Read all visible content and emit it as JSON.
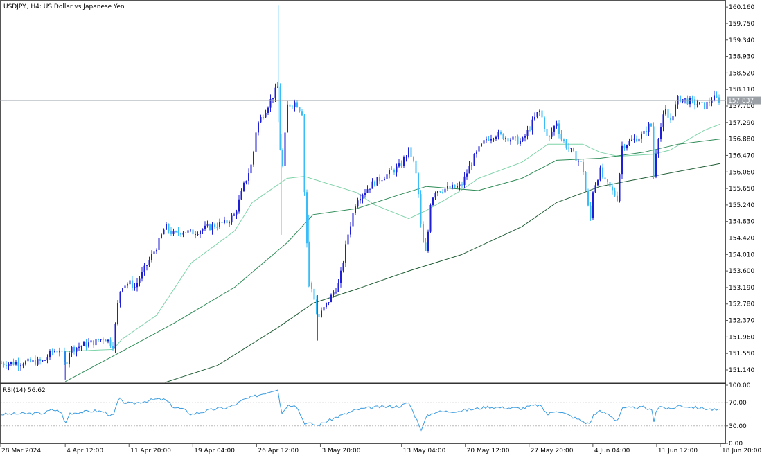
{
  "chart_data": {
    "type": "candlestick",
    "symbol_caption": "USDJPY., H4:  US Dollar vs Japanese Yen",
    "price_axis": {
      "ylim": [
        150.83,
        160.3
      ],
      "ticks": [
        "160.160",
        "159.750",
        "159.340",
        "158.930",
        "158.520",
        "158.110",
        "157.700",
        "157.290",
        "156.880",
        "156.470",
        "156.060",
        "155.650",
        "155.240",
        "154.830",
        "154.420",
        "154.010",
        "153.600",
        "153.190",
        "152.780",
        "152.370",
        "151.960",
        "151.550",
        "151.140"
      ]
    },
    "current_price": {
      "value": 157.837,
      "label": "157.837"
    },
    "time_labels": [
      "28 Mar 2024",
      "4 Apr 12:00",
      "11 Apr 20:00",
      "19 Apr 04:00",
      "26 Apr 12:00",
      "3 May 20:00",
      "13 May 04:00",
      "20 May 12:00",
      "27 May 20:00",
      "4 Jun 04:00",
      "11 Jun 12:00",
      "18 Jun 20:00"
    ],
    "price_path": [
      [
        "28 Mar 2024",
        151.3
      ],
      [
        "2 Apr",
        151.35
      ],
      [
        "3 Apr",
        151.6
      ],
      [
        "4 Apr",
        151.65
      ],
      [
        "4 Apr 12:00",
        151.2
      ],
      [
        "5 Apr",
        151.65
      ],
      [
        "8 Apr",
        151.85
      ],
      [
        "9 Apr",
        151.95
      ],
      [
        "10 Apr",
        151.75
      ],
      [
        "10 Apr 16:00",
        153.0
      ],
      [
        "11 Apr",
        153.25
      ],
      [
        "12 Apr",
        153.3
      ],
      [
        "12 Apr 12:00",
        153.2
      ],
      [
        "15 Apr",
        154.2
      ],
      [
        "16 Apr",
        154.7
      ],
      [
        "17 Apr",
        154.5
      ],
      [
        "18 Apr",
        154.6
      ],
      [
        "19 Apr",
        154.55
      ],
      [
        "22 Apr",
        154.75
      ],
      [
        "23 Apr",
        154.8
      ],
      [
        "24 Apr",
        155.0
      ],
      [
        "25 Apr",
        155.7
      ],
      [
        "26 Apr",
        156.3
      ],
      [
        "26 Apr 12:00",
        157.2
      ],
      [
        "29 Apr",
        158.2
      ],
      [
        "29 Apr 08:00",
        155.8
      ],
      [
        "29 Apr 16:00",
        156.6
      ],
      [
        "30 Apr",
        157.7
      ],
      [
        "1 May",
        157.8
      ],
      [
        "1 May 20:00",
        157.5
      ],
      [
        "2 May",
        155.6
      ],
      [
        "2 May 12:00",
        153.3
      ],
      [
        "3 May",
        153.1
      ],
      [
        "3 May 12:00",
        152.4
      ],
      [
        "6 May",
        153.3
      ],
      [
        "7 May",
        154.5
      ],
      [
        "8 May",
        155.4
      ],
      [
        "9 May",
        155.6
      ],
      [
        "10 May",
        155.8
      ],
      [
        "13 May",
        156.2
      ],
      [
        "14 May",
        156.6
      ],
      [
        "14 May 12:00",
        156.35
      ],
      [
        "15 May",
        155.8
      ],
      [
        "15 May 12:00",
        154.4
      ],
      [
        "16 May",
        154.0
      ],
      [
        "16 May 12:00",
        155.3
      ],
      [
        "17 May",
        155.6
      ],
      [
        "20 May",
        155.7
      ],
      [
        "21 May",
        156.2
      ],
      [
        "22 May",
        156.6
      ],
      [
        "23 May",
        156.9
      ],
      [
        "24 May",
        157.0
      ],
      [
        "27 May",
        156.8
      ],
      [
        "28 May",
        157.2
      ],
      [
        "29 May",
        157.6
      ],
      [
        "29 May 12:00",
        157.3
      ],
      [
        "30 May",
        156.8
      ],
      [
        "30 May 12:00",
        157.1
      ],
      [
        "31 May",
        157.3
      ],
      [
        "31 May 12:00",
        156.9
      ],
      [
        "3 Jun",
        156.2
      ],
      [
        "3 Jun 12:00",
        155.3
      ],
      [
        "4 Jun",
        154.8
      ],
      [
        "4 Jun 04:00",
        155.6
      ],
      [
        "5 Jun",
        156.1
      ],
      [
        "5 Jun 12:00",
        155.8
      ],
      [
        "6 Jun",
        155.7
      ],
      [
        "7 Jun",
        155.4
      ],
      [
        "7 Jun 12:00",
        156.7
      ],
      [
        "10 Jun",
        157.0
      ],
      [
        "10 Jun 12:00",
        157.2
      ],
      [
        "11 Jun",
        157.2
      ],
      [
        "11 Jun 04:00",
        155.8
      ],
      [
        "11 Jun 12:00",
        156.8
      ],
      [
        "12 Jun",
        157.2
      ],
      [
        "12 Jun 12:00",
        157.6
      ],
      [
        "13 Jun",
        157.3
      ],
      [
        "14 Jun",
        157.9
      ],
      [
        "17 Jun",
        157.7
      ],
      [
        "18 Jun",
        157.9
      ],
      [
        "18 Jun 20:00",
        157.84
      ]
    ],
    "moving_averages": [
      {
        "color": "#7dd3a8",
        "points": [
          [
            "4 Apr 12:00",
            151.6
          ],
          [
            "10 Apr",
            151.65
          ],
          [
            "11 Apr",
            151.9
          ],
          [
            "15 Apr",
            152.5
          ],
          [
            "19 Apr",
            153.8
          ],
          [
            "24 Apr",
            154.6
          ],
          [
            "26 Apr",
            155.3
          ],
          [
            "30 Apr",
            155.9
          ],
          [
            "2 May",
            155.95
          ],
          [
            "8 May",
            155.55
          ],
          [
            "10 May",
            155.25
          ],
          [
            "14 May",
            154.9
          ],
          [
            "16 May",
            155.1
          ],
          [
            "20 May",
            155.6
          ],
          [
            "22 May",
            155.9
          ],
          [
            "27 May",
            156.3
          ],
          [
            "30 May",
            156.75
          ],
          [
            "3 Jun",
            156.75
          ],
          [
            "5 Jun",
            156.55
          ],
          [
            "7 Jun",
            156.45
          ],
          [
            "11 Jun",
            156.5
          ],
          [
            "13 Jun",
            156.6
          ],
          [
            "17 Jun",
            157.1
          ],
          [
            "18 Jun 20:00",
            157.25
          ]
        ]
      },
      {
        "color": "#2e8b57",
        "points": [
          [
            "4 Apr 12:00",
            150.85
          ],
          [
            "11 Apr",
            151.6
          ],
          [
            "17 Apr",
            152.3
          ],
          [
            "24 Apr",
            153.2
          ],
          [
            "30 Apr",
            154.3
          ],
          [
            "3 May",
            155.0
          ],
          [
            "8 May",
            155.15
          ],
          [
            "13 May",
            155.5
          ],
          [
            "16 May",
            155.7
          ],
          [
            "22 May",
            155.6
          ],
          [
            "27 May",
            155.9
          ],
          [
            "31 May",
            156.35
          ],
          [
            "5 Jun",
            156.4
          ],
          [
            "10 Jun",
            156.55
          ],
          [
            "14 Jun",
            156.75
          ],
          [
            "18 Jun 20:00",
            156.88
          ]
        ]
      },
      {
        "color": "#1e5c34",
        "points": [
          [
            "16 Apr",
            150.83
          ],
          [
            "22 Apr",
            151.25
          ],
          [
            "29 Apr",
            152.2
          ],
          [
            "3 May",
            152.8
          ],
          [
            "8 May",
            153.15
          ],
          [
            "14 May",
            153.6
          ],
          [
            "20 May",
            154.0
          ],
          [
            "27 May",
            154.7
          ],
          [
            "31 May",
            155.3
          ],
          [
            "5 Jun",
            155.7
          ],
          [
            "11 Jun",
            155.95
          ],
          [
            "18 Jun 20:00",
            156.27
          ]
        ]
      }
    ],
    "rsi": {
      "label": "RSI(14) 56.62",
      "value": 56.62,
      "ylim": [
        0,
        100
      ],
      "ticks": [
        "100.00",
        "70.00",
        "30.00",
        "0.00"
      ],
      "levels": [
        70,
        30
      ],
      "series": [
        [
          "28 Mar 2024",
          50
        ],
        [
          "2 Apr",
          52
        ],
        [
          "3 Apr",
          58
        ],
        [
          "4 Apr",
          55
        ],
        [
          "4 Apr 12:00",
          33
        ],
        [
          "5 Apr",
          52
        ],
        [
          "8 Apr",
          56
        ],
        [
          "9 Apr",
          54
        ],
        [
          "10 Apr",
          46
        ],
        [
          "10 Apr 16:00",
          78
        ],
        [
          "11 Apr",
          72
        ],
        [
          "12 Apr",
          68
        ],
        [
          "15 Apr",
          76
        ],
        [
          "16 Apr",
          75
        ],
        [
          "17 Apr",
          62
        ],
        [
          "18 Apr",
          59
        ],
        [
          "19 Apr",
          50
        ],
        [
          "22 Apr",
          60
        ],
        [
          "23 Apr",
          61
        ],
        [
          "24 Apr",
          66
        ],
        [
          "25 Apr",
          75
        ],
        [
          "26 Apr 12:00",
          82
        ],
        [
          "29 Apr",
          94
        ],
        [
          "29 Apr 08:00",
          50
        ],
        [
          "30 Apr",
          65
        ],
        [
          "1 May",
          67
        ],
        [
          "2 May",
          35
        ],
        [
          "3 May",
          33
        ],
        [
          "3 May 12:00",
          31
        ],
        [
          "6 May",
          47
        ],
        [
          "7 May",
          52
        ],
        [
          "8 May",
          58
        ],
        [
          "10 May",
          62
        ],
        [
          "13 May",
          64
        ],
        [
          "14 May",
          70
        ],
        [
          "15 May",
          38
        ],
        [
          "15 May 12:00",
          22
        ],
        [
          "16 May",
          46
        ],
        [
          "17 May",
          54
        ],
        [
          "20 May",
          56
        ],
        [
          "21 May",
          58
        ],
        [
          "22 May",
          60
        ],
        [
          "23 May",
          63
        ],
        [
          "24 May",
          62
        ],
        [
          "27 May",
          60
        ],
        [
          "28 May",
          64
        ],
        [
          "29 May",
          66
        ],
        [
          "30 May",
          50
        ],
        [
          "31 May",
          57
        ],
        [
          "3 Jun",
          38
        ],
        [
          "3 Jun 12:00",
          34
        ],
        [
          "4 Jun",
          37
        ],
        [
          "4 Jun 04:00",
          50
        ],
        [
          "5 Jun",
          55
        ],
        [
          "6 Jun",
          50
        ],
        [
          "7 Jun",
          38
        ],
        [
          "7 Jun 12:00",
          60
        ],
        [
          "10 Jun",
          62
        ],
        [
          "11 Jun",
          56
        ],
        [
          "11 Jun 04:00",
          38
        ],
        [
          "11 Jun 12:00",
          60
        ],
        [
          "12 Jun",
          64
        ],
        [
          "13 Jun",
          58
        ],
        [
          "14 Jun",
          65
        ],
        [
          "17 Jun",
          60
        ],
        [
          "18 Jun",
          58
        ],
        [
          "18 Jun 20:00",
          56.62
        ]
      ]
    },
    "colors": {
      "up": "#1f1fd6",
      "down": "#38bdf8",
      "rsi_line": "#3a9be0",
      "grid_level": "#b9b9b9",
      "current_line": "#9aa0a6",
      "price_tag_bg": "#9aa0a6"
    }
  }
}
